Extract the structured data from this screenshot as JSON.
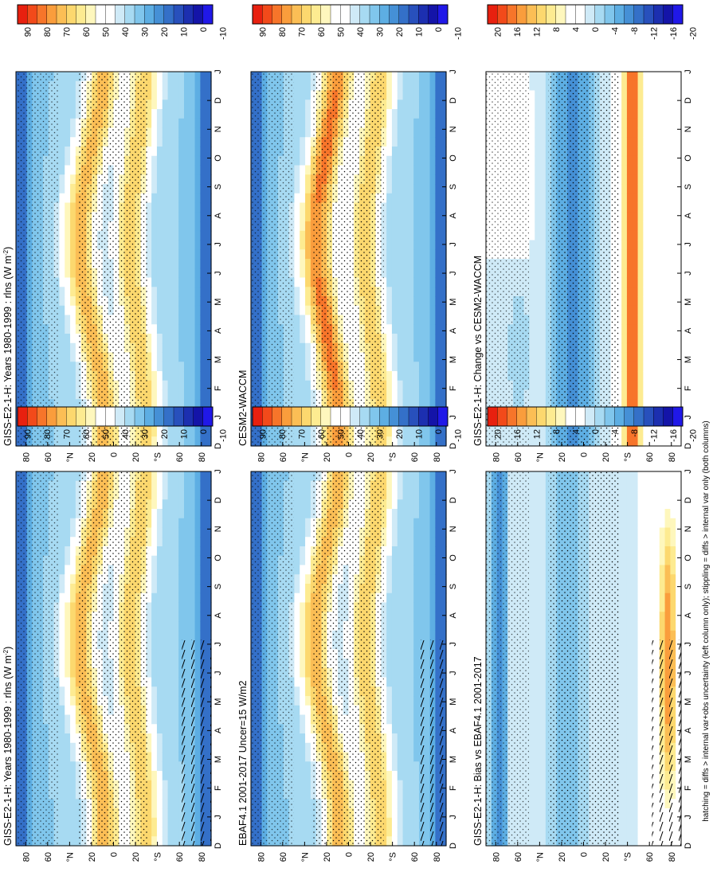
{
  "footnote": "hatching = diffs > internal var+obs uncertainty (left column only); stippling = diffs > internal var only (both columns)",
  "colorbars": {
    "absolute": {
      "labels": [
        "90",
        "80",
        "70",
        "60",
        "50",
        "40",
        "30",
        "20",
        "10",
        "0",
        "-10"
      ],
      "colors": [
        "#e8200f",
        "#f24a1a",
        "#f7752a",
        "#fa9d3c",
        "#fbbe55",
        "#fcd86e",
        "#fdeb91",
        "#fef7bd",
        "#ffffff",
        "#ffffff",
        "#cfeaf7",
        "#a7daf2",
        "#80c6ec",
        "#5daee3",
        "#4590d6",
        "#3470c8",
        "#2850bc",
        "#1c2fb0",
        "#1414a8",
        "#2018e8"
      ]
    },
    "difference": {
      "labels": [
        "20",
        "16",
        "12",
        "8",
        "4",
        "0",
        "-4",
        "-8",
        "-12",
        "-16",
        "-20"
      ],
      "colors": [
        "#e8200f",
        "#f24a1a",
        "#f7752a",
        "#fa9d3c",
        "#fbbe55",
        "#fcd86e",
        "#fdeb91",
        "#fef7bd",
        "#ffffff",
        "#ffffff",
        "#cfeaf7",
        "#a7daf2",
        "#80c6ec",
        "#5daee3",
        "#4590d6",
        "#3470c8",
        "#2850bc",
        "#1c2fb0",
        "#1414a8",
        "#2018e8"
      ]
    }
  },
  "chart_data": [
    {
      "type": "heatmap",
      "title": "GISS-E2-1-H: Years 1980-1999 : rlns (W m",
      "title_sup": "-2",
      "title_end": ")",
      "x_ticks": [
        "D",
        "J",
        "F",
        "M",
        "A",
        "M",
        "J",
        "J",
        "A",
        "S",
        "O",
        "N",
        "D",
        "J"
      ],
      "y_ticks": [
        "80",
        "60",
        "°N",
        "20",
        "0",
        "20",
        "°S",
        "60",
        "80"
      ],
      "colorbar": "absolute",
      "hatching": true,
      "ylim": [
        -90,
        90
      ],
      "grid": false
    },
    {
      "type": "heatmap",
      "title": "GISS-E2-1-H: Years 1980-1999 : rlns (W m",
      "title_sup": "-2",
      "title_end": ")",
      "x_ticks": [
        "D",
        "J",
        "F",
        "M",
        "A",
        "M",
        "J",
        "J",
        "A",
        "S",
        "O",
        "N",
        "D",
        "J"
      ],
      "y_ticks": [
        "80",
        "60",
        "°N",
        "20",
        "0",
        "20",
        "°S",
        "60",
        "80"
      ],
      "colorbar": "absolute",
      "hatching": false,
      "ylim": [
        -90,
        90
      ],
      "grid": false
    },
    {
      "type": "heatmap",
      "title": "EBAF4.1 2001-2017 Uncer=15 W/m2",
      "title_sup": "",
      "title_end": "",
      "x_ticks": [
        "D",
        "J",
        "F",
        "M",
        "A",
        "M",
        "J",
        "J",
        "A",
        "S",
        "O",
        "N",
        "D",
        "J"
      ],
      "y_ticks": [
        "80",
        "60",
        "°N",
        "20",
        "0",
        "20",
        "°S",
        "60",
        "80"
      ],
      "colorbar": "absolute",
      "hatching": true,
      "ylim": [
        -90,
        90
      ],
      "grid": false
    },
    {
      "type": "heatmap",
      "title": "CESM2-WACCM",
      "title_sup": "",
      "title_end": "",
      "x_ticks": [
        "D",
        "J",
        "F",
        "M",
        "A",
        "M",
        "J",
        "J",
        "A",
        "S",
        "O",
        "N",
        "D",
        "J"
      ],
      "y_ticks": [
        "80",
        "60",
        "°N",
        "20",
        "0",
        "20",
        "°S",
        "60",
        "80"
      ],
      "colorbar": "absolute",
      "hatching": false,
      "ylim": [
        -90,
        90
      ],
      "grid": false
    },
    {
      "type": "heatmap",
      "title": "GISS-E2-1-H: Bias vs EBAF4.1 2001-2017",
      "title_sup": "",
      "title_end": "",
      "x_ticks": [
        "D",
        "J",
        "F",
        "M",
        "A",
        "M",
        "J",
        "J",
        "A",
        "S",
        "O",
        "N",
        "D",
        "J"
      ],
      "y_ticks": [
        "80",
        "60",
        "°N",
        "20",
        "0",
        "20",
        "°S",
        "60",
        "80"
      ],
      "colorbar": "difference",
      "hatching": true,
      "ylim": [
        -90,
        90
      ],
      "grid": false
    },
    {
      "type": "heatmap",
      "title": "GISS-E2-1-H: Change vs CESM2-WACCM",
      "title_sup": "",
      "title_end": "",
      "x_ticks": [
        "D",
        "J",
        "F",
        "M",
        "A",
        "M",
        "J",
        "J",
        "A",
        "S",
        "O",
        "N",
        "D",
        "J"
      ],
      "y_ticks": [
        "80",
        "60",
        "°N",
        "20",
        "0",
        "20",
        "°S",
        "60",
        "80"
      ],
      "colorbar": "difference",
      "hatching": false,
      "ylim": [
        -90,
        90
      ],
      "grid": false
    }
  ]
}
